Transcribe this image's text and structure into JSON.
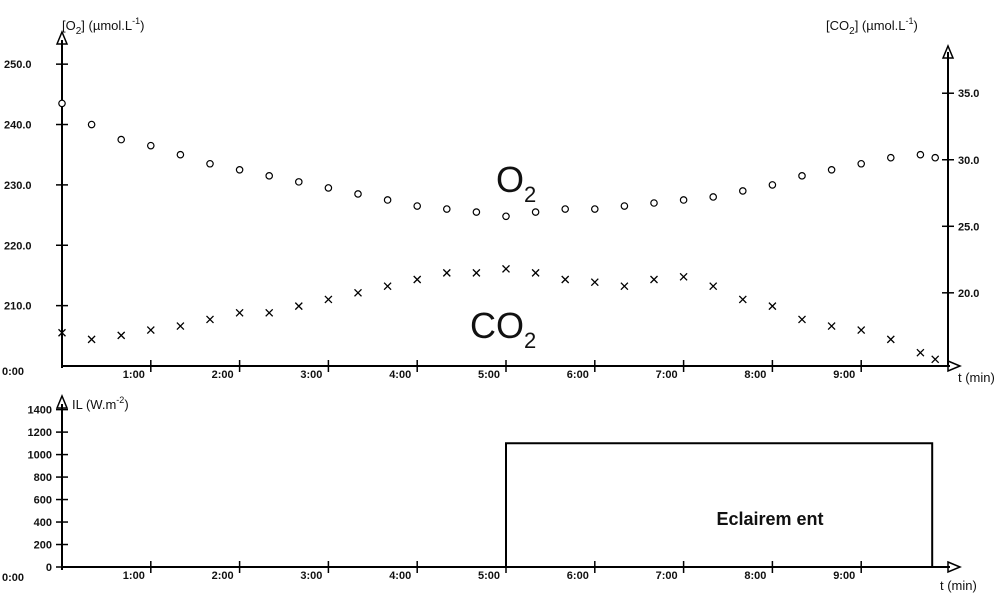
{
  "chart_data": [
    {
      "type": "scatter",
      "ylabel_left": "[O2] (µmol.L-1)",
      "ylabel_right": "[CO2] (µmol.L-1)",
      "xlabel": "t (min)",
      "xlim_sec": [
        0,
        590
      ],
      "x_tick_labels": [
        "0:00",
        "1:00",
        "2:00",
        "3:00",
        "4:00",
        "5:00",
        "6:00",
        "7:00",
        "8:00",
        "9:00"
      ],
      "y_left_tick_labels": [
        "250.0",
        "240.0",
        "230.0",
        "220.0",
        "210.0"
      ],
      "y_left_ticks": [
        250,
        240,
        230,
        220,
        210
      ],
      "ylim_left": [
        200,
        254
      ],
      "y_right_tick_labels": [
        "35.0",
        "30.0",
        "25.0",
        "20.0"
      ],
      "y_right_ticks": [
        35,
        30,
        25,
        20
      ],
      "ylim_right": [
        14.5,
        39
      ],
      "series": [
        {
          "name": "O2",
          "marker": "circle",
          "axis": "left",
          "x": [
            0,
            20,
            40,
            60,
            80,
            100,
            120,
            140,
            160,
            180,
            200,
            220,
            240,
            260,
            280,
            300,
            320,
            340,
            360,
            380,
            400,
            420,
            440,
            460,
            480,
            500,
            520,
            540,
            560,
            580,
            590
          ],
          "y": [
            243.5,
            240.0,
            237.5,
            236.5,
            235.0,
            233.5,
            232.5,
            231.5,
            230.5,
            229.5,
            228.5,
            227.5,
            226.5,
            226.0,
            225.5,
            224.8,
            225.5,
            226.0,
            226.0,
            226.5,
            227.0,
            227.5,
            228.0,
            229.0,
            230.0,
            231.5,
            232.5,
            233.5,
            234.5,
            235.0,
            234.5
          ]
        },
        {
          "name": "CO2",
          "marker": "cross",
          "axis": "right",
          "x": [
            0,
            20,
            40,
            60,
            80,
            100,
            120,
            140,
            160,
            180,
            200,
            220,
            240,
            260,
            280,
            300,
            320,
            340,
            360,
            380,
            400,
            420,
            440,
            460,
            480,
            500,
            520,
            540,
            560,
            580,
            590
          ],
          "y": [
            17.0,
            16.5,
            16.8,
            17.2,
            17.5,
            18.0,
            18.5,
            18.5,
            19.0,
            19.5,
            20.0,
            20.5,
            21.0,
            21.5,
            21.5,
            21.8,
            21.5,
            21.0,
            20.8,
            20.5,
            21.0,
            21.2,
            20.5,
            19.5,
            19.0,
            18.0,
            17.5,
            17.2,
            16.5,
            15.5,
            15.0
          ]
        }
      ]
    },
    {
      "type": "line",
      "ylabel": "IL (W.m-2)",
      "xlabel": "t (min)",
      "xlim_sec": [
        0,
        590
      ],
      "x_tick_labels": [
        "0:00",
        "1:00",
        "2:00",
        "3:00",
        "4:00",
        "5:00",
        "6:00",
        "7:00",
        "8:00",
        "9:00"
      ],
      "y_tick_labels": [
        "1400",
        "1200",
        "1000",
        "800",
        "600",
        "400",
        "200",
        "0"
      ],
      "y_ticks": [
        1400,
        1200,
        1000,
        800,
        600,
        400,
        200,
        0
      ],
      "ylim": [
        0,
        1450
      ],
      "series": [
        {
          "name": "IL",
          "x": [
            0,
            300,
            300,
            588,
            588
          ],
          "y": [
            0,
            0,
            1100,
            1100,
            0
          ]
        }
      ],
      "annotation": "Eclairem ent"
    }
  ],
  "series_labels": {
    "o2": "O",
    "o2_sub": "2",
    "co2": "CO",
    "co2_sub": "2"
  },
  "axis_labels": {
    "o2_axis": "[O",
    "o2_sub": "2",
    "o2_unit": "] (µmol.L",
    "o2_exp": "-1",
    "o2_close": ")",
    "co2_axis": "[CO",
    "co2_sub": "2",
    "co2_unit": "] (µmol.L",
    "co2_exp": "-1",
    "co2_close": ")",
    "il_axis": "IL (W.m",
    "il_exp": "-2",
    "il_close": ")",
    "time": "t (min)"
  }
}
